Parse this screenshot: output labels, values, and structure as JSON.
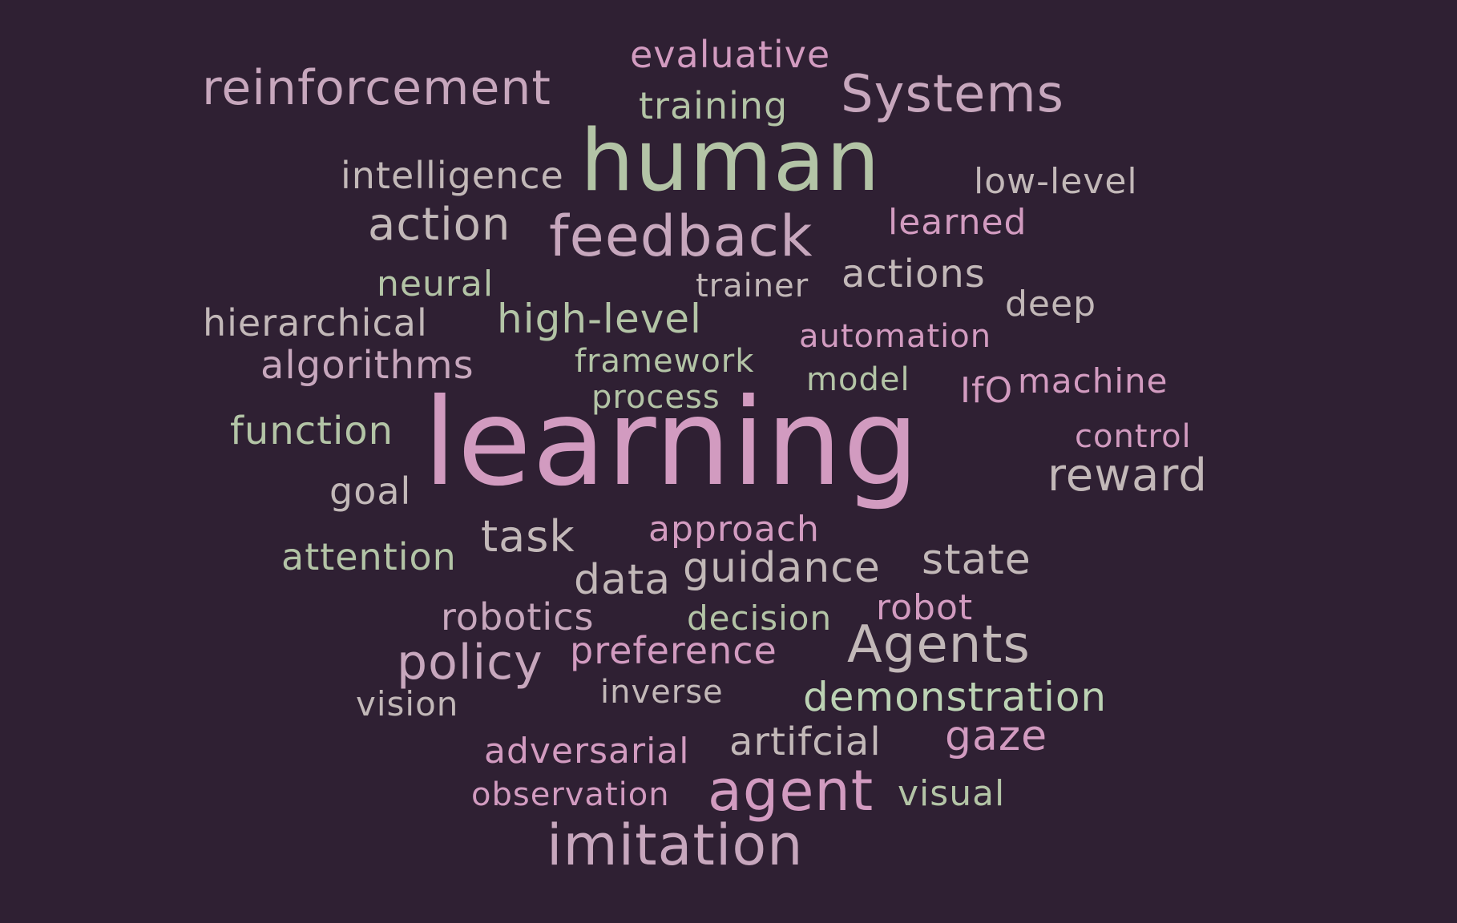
{
  "palette": {
    "background": "#2f2033",
    "pink": "#d29bc0",
    "mauve": "#c7a7bd",
    "sage": "#b3c4a6",
    "grey": "#c2b8b8",
    "light-green": "#bcd3b4"
  },
  "words": [
    {
      "text": "evaluative",
      "weight": 3,
      "color": "#d29bc0"
    },
    {
      "text": "reinforcement",
      "weight": 5,
      "color": "#c7a7bd"
    },
    {
      "text": "training",
      "weight": 3,
      "color": "#b3c4a6"
    },
    {
      "text": "Systems",
      "weight": 5,
      "color": "#c7a7bd"
    },
    {
      "text": "human",
      "weight": 9,
      "color": "#b3c4a6"
    },
    {
      "text": "intelligence",
      "weight": 3,
      "color": "#c2b8b8"
    },
    {
      "text": "low-level",
      "weight": 3,
      "color": "#c2b8b8"
    },
    {
      "text": "action",
      "weight": 4,
      "color": "#c2b8b8"
    },
    {
      "text": "feedback",
      "weight": 6,
      "color": "#c7a7bd"
    },
    {
      "text": "learned",
      "weight": 3,
      "color": "#d29bc0"
    },
    {
      "text": "neural",
      "weight": 3,
      "color": "#b3c4a6"
    },
    {
      "text": "trainer",
      "weight": 3,
      "color": "#c2b8b8"
    },
    {
      "text": "actions",
      "weight": 3,
      "color": "#c2b8b8"
    },
    {
      "text": "deep",
      "weight": 3,
      "color": "#c2b8b8"
    },
    {
      "text": "hierarchical",
      "weight": 3,
      "color": "#c2b8b8"
    },
    {
      "text": "high-level",
      "weight": 3,
      "color": "#b3c4a6"
    },
    {
      "text": "automation",
      "weight": 3,
      "color": "#d29bc0"
    },
    {
      "text": "algorithms",
      "weight": 3,
      "color": "#c7a7bd"
    },
    {
      "text": "framework",
      "weight": 3,
      "color": "#b3c4a6"
    },
    {
      "text": "model",
      "weight": 3,
      "color": "#b3c4a6"
    },
    {
      "text": "IfO",
      "weight": 3,
      "color": "#d29bc0"
    },
    {
      "text": "machine",
      "weight": 3,
      "color": "#d29bc0"
    },
    {
      "text": "process",
      "weight": 3,
      "color": "#b3c4a6"
    },
    {
      "text": "function",
      "weight": 3,
      "color": "#b3c4a6"
    },
    {
      "text": "learning",
      "weight": 10,
      "color": "#d29bc0"
    },
    {
      "text": "control",
      "weight": 3,
      "color": "#d29bc0"
    },
    {
      "text": "reward",
      "weight": 4,
      "color": "#c2b8b8"
    },
    {
      "text": "goal",
      "weight": 3,
      "color": "#c2b8b8"
    },
    {
      "text": "task",
      "weight": 4,
      "color": "#c2b8b8"
    },
    {
      "text": "approach",
      "weight": 3,
      "color": "#d29bc0"
    },
    {
      "text": "attention",
      "weight": 3,
      "color": "#b3c4a6"
    },
    {
      "text": "state",
      "weight": 4,
      "color": "#c2b8b8"
    },
    {
      "text": "data",
      "weight": 4,
      "color": "#c2b8b8"
    },
    {
      "text": "guidance",
      "weight": 4,
      "color": "#c2b8b8"
    },
    {
      "text": "robot",
      "weight": 3,
      "color": "#d29bc0"
    },
    {
      "text": "robotics",
      "weight": 3,
      "color": "#c7a7bd"
    },
    {
      "text": "decision",
      "weight": 3,
      "color": "#b3c4a6"
    },
    {
      "text": "Agents",
      "weight": 5,
      "color": "#c2b8b8"
    },
    {
      "text": "policy",
      "weight": 5,
      "color": "#c7a7bd"
    },
    {
      "text": "preference",
      "weight": 3,
      "color": "#d29bc0"
    },
    {
      "text": "vision",
      "weight": 3,
      "color": "#c2b8b8"
    },
    {
      "text": "inverse",
      "weight": 3,
      "color": "#c2b8b8"
    },
    {
      "text": "demonstration",
      "weight": 4,
      "color": "#bcd3b4"
    },
    {
      "text": "adversarial",
      "weight": 3,
      "color": "#d29bc0"
    },
    {
      "text": "artifcial",
      "weight": 3,
      "color": "#c2b8b8"
    },
    {
      "text": "gaze",
      "weight": 4,
      "color": "#d29bc0"
    },
    {
      "text": "observation",
      "weight": 3,
      "color": "#d29bc0"
    },
    {
      "text": "agent",
      "weight": 6,
      "color": "#d29bc0"
    },
    {
      "text": "visual",
      "weight": 3,
      "color": "#b3c4a6"
    },
    {
      "text": "imitation",
      "weight": 6,
      "color": "#c7a7bd"
    }
  ]
}
